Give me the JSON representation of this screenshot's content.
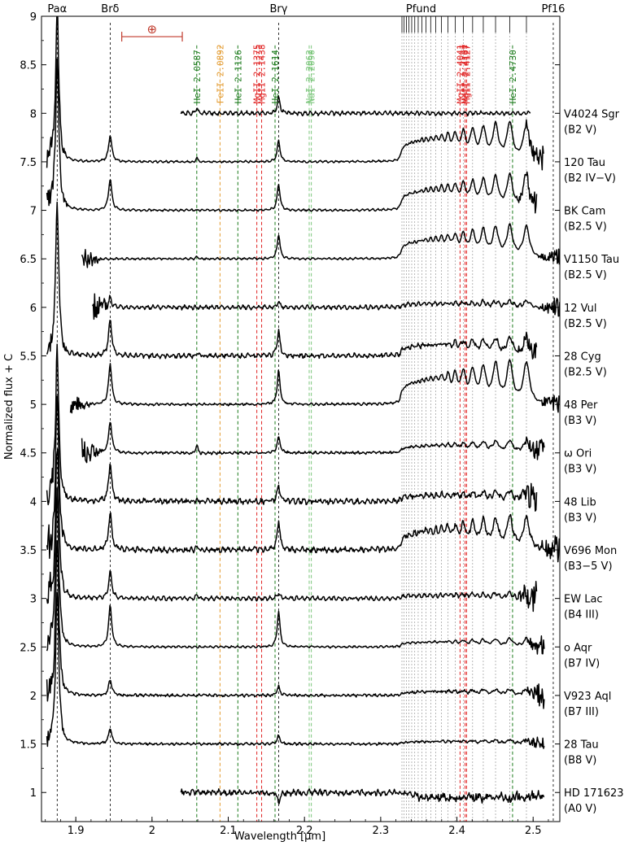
{
  "chart_data": {
    "type": "line",
    "title": "",
    "xlabel": "Wavelength [μm]",
    "ylabel": "Normalized flux + C",
    "xlim": [
      1.855,
      2.535
    ],
    "ylim": [
      0.7,
      9.0
    ],
    "x_ticks": [
      {
        "value": 1.9,
        "label": "1.9"
      },
      {
        "value": 2.0,
        "label": "2"
      },
      {
        "value": 2.1,
        "label": "2.1"
      },
      {
        "value": 2.2,
        "label": "2.2"
      },
      {
        "value": 2.3,
        "label": "2.3"
      },
      {
        "value": 2.4,
        "label": "2.4"
      },
      {
        "value": 2.5,
        "label": "2.5"
      }
    ],
    "y_ticks": [
      {
        "value": 1,
        "label": "1"
      },
      {
        "value": 1.5,
        "label": "1.5"
      },
      {
        "value": 2,
        "label": "2"
      },
      {
        "value": 2.5,
        "label": "2.5"
      },
      {
        "value": 3,
        "label": "3"
      },
      {
        "value": 3.5,
        "label": "3.5"
      },
      {
        "value": 4,
        "label": "4"
      },
      {
        "value": 4.5,
        "label": "4.5"
      },
      {
        "value": 5,
        "label": "5"
      },
      {
        "value": 5.5,
        "label": "5.5"
      },
      {
        "value": 6,
        "label": "6"
      },
      {
        "value": 6.5,
        "label": "6.5"
      },
      {
        "value": 7,
        "label": "7"
      },
      {
        "value": 7.5,
        "label": "7.5"
      },
      {
        "value": 8,
        "label": "8"
      },
      {
        "value": 8.5,
        "label": "8.5"
      },
      {
        "value": 9,
        "label": "9"
      }
    ],
    "hydrogen_lines": [
      {
        "label": "Paα",
        "wavelength": 1.8756
      },
      {
        "label": "Brδ",
        "wavelength": 1.9451
      },
      {
        "label": "Brγ",
        "wavelength": 2.1661
      },
      {
        "label": "Pf16",
        "wavelength": 2.5264
      }
    ],
    "pfund_series": {
      "label": "Pfund",
      "wavelengths": [
        2.3279,
        2.3307,
        2.3338,
        2.3371,
        2.3407,
        2.3447,
        2.3492,
        2.3541,
        2.3595,
        2.3656,
        2.3723,
        2.3798,
        2.3882,
        2.3977,
        2.4084,
        2.4206,
        2.4346,
        2.4507,
        2.4693,
        2.4912
      ]
    },
    "line_ids": [
      {
        "label": "HeI 2.0587",
        "wavelength": 2.0587,
        "color": "#1a7a1a"
      },
      {
        "label": "FeII 2.0892",
        "wavelength": 2.0892,
        "color": "#e39a2e"
      },
      {
        "label": "HeI 2.1126",
        "wavelength": 2.1126,
        "color": "#1a7a1a"
      },
      {
        "label": "MgII 2.1375",
        "wavelength": 2.1375,
        "color": "#e02020"
      },
      {
        "label": "MgII 2.1438",
        "wavelength": 2.1438,
        "color": "#e02020"
      },
      {
        "label": "HeI 2.1614",
        "wavelength": 2.1614,
        "color": "#1a7a1a"
      },
      {
        "label": "NaI 2.2062",
        "wavelength": 2.2062,
        "color": "#7bc67b"
      },
      {
        "label": "NaI 2.2090",
        "wavelength": 2.209,
        "color": "#7bc67b"
      },
      {
        "label": "MgII 2.4041",
        "wavelength": 2.4041,
        "color": "#e02020"
      },
      {
        "label": "MgII 2.4107",
        "wavelength": 2.4107,
        "color": "#e02020"
      },
      {
        "label": "MgII 2.4127",
        "wavelength": 2.4127,
        "color": "#e02020"
      },
      {
        "label": "HeI 2.4730",
        "wavelength": 2.473,
        "color": "#1a7a1a"
      }
    ],
    "telluric_bar": {
      "symbol": "⊕",
      "x_range": [
        1.9603,
        2.0397
      ],
      "y": 8.79
    },
    "series": [
      {
        "name": "V4024 Sgr",
        "spectral_type": "(B2 V)",
        "offset": 8.0,
        "x_start": 2.038,
        "x_end": 2.497,
        "bry": 0.16,
        "brd": 0.0,
        "pfund": 0.0,
        "hei": 0.05,
        "noise": 0.012,
        "jitter_edge": 0.0
      },
      {
        "name": "120 Tau",
        "spectral_type": "(B2 IV−V)",
        "offset": 7.5,
        "x_start": 1.862,
        "x_end": 2.514,
        "bry": 0.22,
        "brd": 0.27,
        "pfund": 0.38,
        "hei": 0.04,
        "noise": 0.006,
        "jitter_edge": 0.15
      },
      {
        "name": "BK Cam",
        "spectral_type": "(B2.5 V)",
        "offset": 7.0,
        "x_start": 1.862,
        "x_end": 2.505,
        "bry": 0.27,
        "brd": 0.32,
        "pfund": 0.34,
        "hei": 0.0,
        "noise": 0.006,
        "jitter_edge": 0.15
      },
      {
        "name": "V1150 Tau",
        "spectral_type": "(B2.5 V)",
        "offset": 6.5,
        "x_start": 1.908,
        "x_end": 2.535,
        "bry": 0.25,
        "brd": 0.0,
        "pfund": 0.32,
        "hei": 0.02,
        "noise": 0.006,
        "jitter_edge": 0.12
      },
      {
        "name": "12 Vul",
        "spectral_type": "(B2.5 V)",
        "offset": 6.0,
        "x_start": 1.922,
        "x_end": 2.535,
        "bry": 0.06,
        "brd": 0.1,
        "pfund": 0.06,
        "hei": 0.0,
        "noise": 0.012,
        "jitter_edge": 0.15
      },
      {
        "name": "28 Cyg",
        "spectral_type": "(B2.5 V)",
        "offset": 5.5,
        "x_start": 1.862,
        "x_end": 2.505,
        "bry": 0.26,
        "brd": 0.37,
        "pfund": 0.18,
        "hei": 0.03,
        "noise": 0.015,
        "jitter_edge": 0.12
      },
      {
        "name": "48 Per",
        "spectral_type": "(B3 V)",
        "offset": 5.0,
        "x_start": 1.893,
        "x_end": 2.535,
        "bry": 0.35,
        "brd": 0.42,
        "pfund": 0.42,
        "hei": 0.0,
        "noise": 0.008,
        "jitter_edge": 0.12
      },
      {
        "name": "ω Ori",
        "spectral_type": "(B3 V)",
        "offset": 4.5,
        "x_start": 1.908,
        "x_end": 2.515,
        "bry": 0.17,
        "brd": 0.33,
        "pfund": 0.12,
        "hei": 0.08,
        "noise": 0.01,
        "jitter_edge": 0.18
      },
      {
        "name": "48 Lib",
        "spectral_type": "(B3 V)",
        "offset": 4.0,
        "x_start": 1.862,
        "x_end": 2.505,
        "bry": 0.16,
        "brd": 0.38,
        "pfund": 0.1,
        "hei": 0.0,
        "noise": 0.02,
        "jitter_edge": 0.18
      },
      {
        "name": "V696 Mon",
        "spectral_type": "(B3−5 V)",
        "offset": 3.5,
        "x_start": 1.862,
        "x_end": 2.535,
        "bry": 0.3,
        "brd": 0.38,
        "pfund": 0.32,
        "hei": 0.02,
        "noise": 0.02,
        "jitter_edge": 0.2
      },
      {
        "name": "EW Lac",
        "spectral_type": "(B4 III)",
        "offset": 3.0,
        "x_start": 1.862,
        "x_end": 2.505,
        "bry": 0.05,
        "brd": 0.27,
        "pfund": 0.05,
        "hei": 0.04,
        "noise": 0.012,
        "jitter_edge": 0.2
      },
      {
        "name": "o Aqr",
        "spectral_type": "(B7 IV)",
        "offset": 2.5,
        "x_start": 1.862,
        "x_end": 2.515,
        "bry": 0.36,
        "brd": 0.42,
        "pfund": 0.08,
        "hei": 0.0,
        "noise": 0.006,
        "jitter_edge": 0.12
      },
      {
        "name": "V923 Aql",
        "spectral_type": "(B7 III)",
        "offset": 2.0,
        "x_start": 1.862,
        "x_end": 2.515,
        "bry": 0.09,
        "brd": 0.16,
        "pfund": 0.06,
        "hei": 0.0,
        "noise": 0.01,
        "jitter_edge": 0.15
      },
      {
        "name": "28 Tau",
        "spectral_type": "(B8 V)",
        "offset": 1.5,
        "x_start": 1.862,
        "x_end": 2.515,
        "bry": 0.09,
        "brd": 0.16,
        "pfund": 0.04,
        "hei": 0.0,
        "noise": 0.008,
        "jitter_edge": 0.1
      },
      {
        "name": "HD 171623",
        "spectral_type": "(A0 V)",
        "offset": 1.0,
        "x_start": 2.038,
        "x_end": 2.515,
        "bry": -0.1,
        "brd": 0.0,
        "pfund": -0.03,
        "hei": 0.0,
        "noise": 0.022,
        "jitter_edge": 0.0
      }
    ]
  }
}
